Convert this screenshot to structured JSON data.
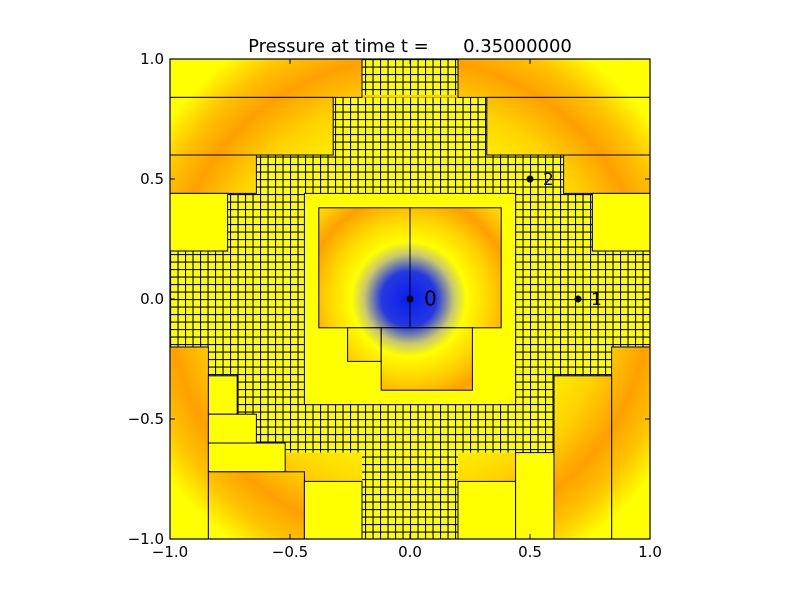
{
  "chart_data": {
    "type": "heatmap",
    "title": "Pressure at time t =      0.35000000",
    "xlim": [
      -1.0,
      1.0
    ],
    "ylim": [
      -1.0,
      1.0
    ],
    "xticks": [
      "−1.0",
      "−0.5",
      "0.0",
      "0.5",
      "1.0"
    ],
    "xtick_values": [
      -1.0,
      -0.5,
      0.0,
      0.5,
      1.0
    ],
    "yticks": [
      "−1.0",
      "−0.5",
      "0.0",
      "0.5",
      "1.0"
    ],
    "ytick_values": [
      -1.0,
      -0.5,
      0.0,
      0.5,
      1.0
    ],
    "grid": false,
    "field": "pressure pulse centered at (0, 0); low pressure blue at center, ring of orange/yellow",
    "colors": {
      "low": "#0a1cf0",
      "mid": "#ffa000",
      "high": "#ffff00"
    },
    "fine_mesh_regions": [
      {
        "x0": -0.2,
        "x1": 0.2,
        "y0": 0.85,
        "y1": 1.0
      },
      {
        "x0": -0.32,
        "x1": 0.32,
        "y0": 0.6,
        "y1": 0.84
      },
      {
        "x0": -0.64,
        "x1": 0.64,
        "y0": 0.44,
        "y1": 0.6
      },
      {
        "x0": -0.76,
        "x1": 0.76,
        "y0": 0.2,
        "y1": 0.44
      },
      {
        "x0": -1.0,
        "x1": 1.0,
        "y0": -0.2,
        "y1": 0.2
      },
      {
        "x0": -0.84,
        "x1": 0.84,
        "y0": -0.64,
        "y1": -0.2
      },
      {
        "x0": -0.2,
        "x1": 0.2,
        "y0": -1.0,
        "y1": -0.64
      }
    ],
    "patches": [
      {
        "x0": -1.0,
        "x1": -0.2,
        "y0": 0.84,
        "y1": 1.0,
        "kind": "ring"
      },
      {
        "x0": 0.2,
        "x1": 1.0,
        "y0": 0.84,
        "y1": 1.0,
        "kind": "ring"
      },
      {
        "x0": -1.0,
        "x1": -0.32,
        "y0": 0.6,
        "y1": 0.84,
        "kind": "ring"
      },
      {
        "x0": 0.32,
        "x1": 1.0,
        "y0": 0.6,
        "y1": 0.84,
        "kind": "ring"
      },
      {
        "x0": -1.0,
        "x1": -0.64,
        "y0": 0.44,
        "y1": 0.6,
        "kind": "ring"
      },
      {
        "x0": 0.64,
        "x1": 1.0,
        "y0": 0.44,
        "y1": 0.6,
        "kind": "ring"
      },
      {
        "x0": -1.0,
        "x1": -0.76,
        "y0": 0.2,
        "y1": 0.44,
        "kind": "flat"
      },
      {
        "x0": 0.76,
        "x1": 1.0,
        "y0": 0.2,
        "y1": 0.44,
        "kind": "flat"
      },
      {
        "x0": -1.0,
        "x1": -0.84,
        "y0": -1.0,
        "y1": -0.2,
        "kind": "ring"
      },
      {
        "x0": 0.84,
        "x1": 1.0,
        "y0": -1.0,
        "y1": -0.2,
        "kind": "ring"
      },
      {
        "x0": -0.84,
        "x1": -0.72,
        "y0": -0.48,
        "y1": -0.32,
        "kind": "flat"
      },
      {
        "x0": -0.84,
        "x1": -0.64,
        "y0": -0.6,
        "y1": -0.48,
        "kind": "flat"
      },
      {
        "x0": -0.84,
        "x1": -0.52,
        "y0": -0.72,
        "y1": -0.6,
        "kind": "flat"
      },
      {
        "x0": -0.84,
        "x1": -0.44,
        "y0": -1.0,
        "y1": -0.72,
        "kind": "ring"
      },
      {
        "x0": -0.44,
        "x1": -0.2,
        "y0": -1.0,
        "y1": -0.76,
        "kind": "flat"
      },
      {
        "x0": 0.2,
        "x1": 0.44,
        "y0": -1.0,
        "y1": -0.76,
        "kind": "flat"
      },
      {
        "x0": 0.44,
        "x1": 0.6,
        "y0": -1.0,
        "y1": -0.64,
        "kind": "flat"
      },
      {
        "x0": 0.6,
        "x1": 0.84,
        "y0": -1.0,
        "y1": -0.32,
        "kind": "ring"
      },
      {
        "x0": -0.44,
        "x1": 0.44,
        "y0": -0.44,
        "y1": 0.44,
        "kind": "ring"
      },
      {
        "x0": -0.38,
        "x1": 0.0,
        "y0": -0.12,
        "y1": 0.38,
        "kind": "center"
      },
      {
        "x0": 0.0,
        "x1": 0.38,
        "y0": -0.12,
        "y1": 0.38,
        "kind": "center"
      },
      {
        "x0": -0.26,
        "x1": -0.12,
        "y0": -0.26,
        "y1": -0.12,
        "kind": "center"
      },
      {
        "x0": -0.12,
        "x1": 0.26,
        "y0": -0.38,
        "y1": -0.12,
        "kind": "center"
      }
    ],
    "probes": [
      {
        "label": "0",
        "x": 0.0,
        "y": 0.0
      },
      {
        "label": "1",
        "x": 0.7,
        "y": 0.0
      },
      {
        "label": "2",
        "x": 0.5,
        "y": 0.5
      }
    ]
  }
}
